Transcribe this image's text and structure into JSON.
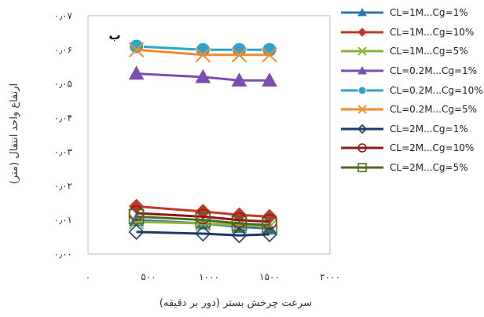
{
  "chart_data": {
    "type": "line",
    "panel_label": "ب",
    "xlabel": "سرعت چرخش بستر (دور بر دقیقه)",
    "ylabel": "ارتفاع واحد انتقال (متر)",
    "xlim": [
      0,
      2000
    ],
    "ylim": [
      0,
      0.07
    ],
    "x_ticks": [
      0,
      500,
      1000,
      1500,
      2000
    ],
    "x_tick_labels": [
      "۰",
      "۵۰۰",
      "۱۰۰۰",
      "۱۵۰۰",
      "۲۰۰۰"
    ],
    "y_ticks": [
      0,
      0.01,
      0.02,
      0.03,
      0.04,
      0.05,
      0.06,
      0.07
    ],
    "y_tick_labels": [
      "۰٫۰۰",
      "۰٫۰۱",
      "۰٫۰۲",
      "۰٫۰۳",
      "۰٫۰۴",
      "۰٫۰۵",
      "۰٫۰۶",
      "۰٫۰۷"
    ],
    "grid": false,
    "legend_position": "right",
    "x": [
      400,
      950,
      1250,
      1500
    ],
    "series": [
      {
        "name": "CL=1M...Cg=1%",
        "color": "#2E74B5",
        "marker": "triangle",
        "values": [
          0.01,
          0.009,
          0.008,
          0.0075
        ]
      },
      {
        "name": "CL=1M...Cg=10%",
        "color": "#C0392B",
        "marker": "diamond",
        "values": [
          0.014,
          0.0125,
          0.0115,
          0.011
        ]
      },
      {
        "name": "CL=1M...Cg=5%",
        "color": "#8DB33A",
        "marker": "x",
        "values": [
          0.0095,
          0.009,
          0.0085,
          0.008
        ]
      },
      {
        "name": "CL=0.2M...Cg=1%",
        "color": "#7B4FB0",
        "marker": "triangle",
        "values": [
          0.053,
          0.052,
          0.051,
          0.051
        ]
      },
      {
        "name": "CL=0.2M...Cg=10%",
        "color": "#2FA3C9",
        "marker": "circle",
        "values": [
          0.061,
          0.06,
          0.06,
          0.06
        ]
      },
      {
        "name": "CL=0.2M...Cg=5%",
        "color": "#F28A2E",
        "marker": "x",
        "values": [
          0.06,
          0.0585,
          0.0585,
          0.0585
        ]
      },
      {
        "name": "CL=2M...Cg=1%",
        "color": "#1F3A68",
        "marker": "diamond-open",
        "values": [
          0.0065,
          0.006,
          0.0055,
          0.0058
        ]
      },
      {
        "name": "CL=2M...Cg=10%",
        "color": "#8B1A1A",
        "marker": "circle-open",
        "values": [
          0.012,
          0.011,
          0.01,
          0.0095
        ]
      },
      {
        "name": "CL=2M...Cg=5%",
        "color": "#4E6B1E",
        "marker": "square-open",
        "values": [
          0.011,
          0.01,
          0.009,
          0.0085
        ]
      }
    ]
  }
}
